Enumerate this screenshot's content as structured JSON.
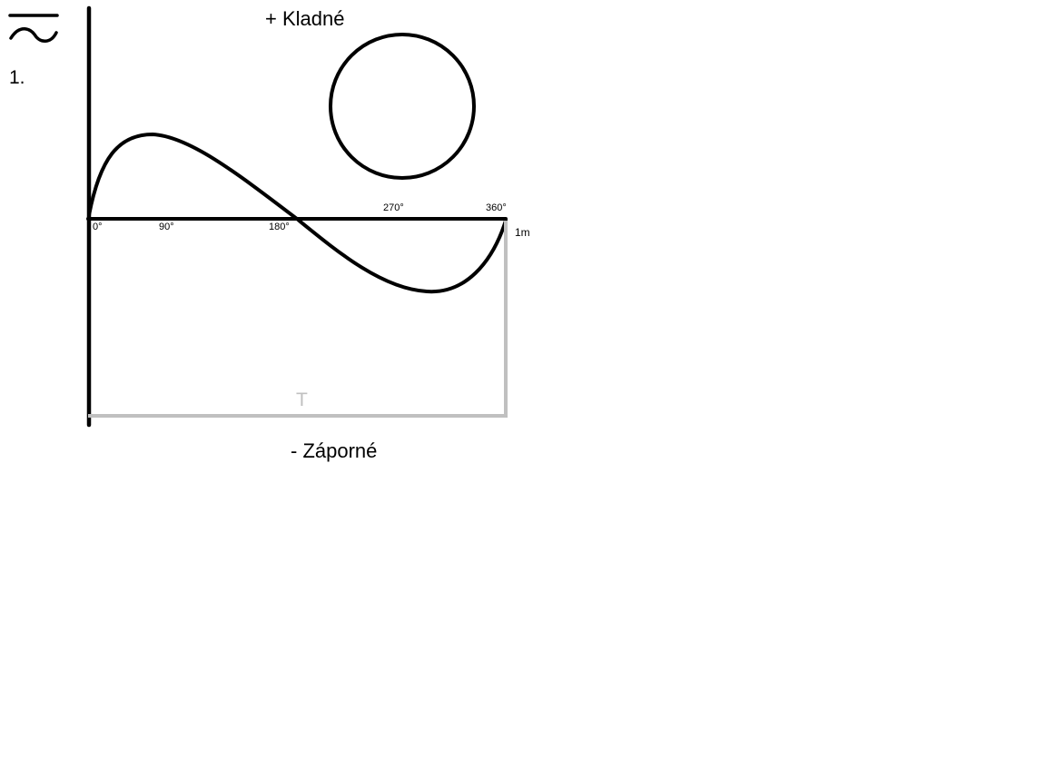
{
  "step_number": "1.",
  "positive_label": "+ Kladné",
  "negative_label": "- Záporné",
  "period_label": "T",
  "amplitude_label": "1m",
  "ticks": [
    "0°",
    "90°",
    "180°",
    "270°",
    "360°"
  ],
  "icons": {
    "ac_symbol": "alternating-current-icon"
  },
  "colors": {
    "ink": "#000000",
    "period_marker": "#c0c0c0"
  }
}
